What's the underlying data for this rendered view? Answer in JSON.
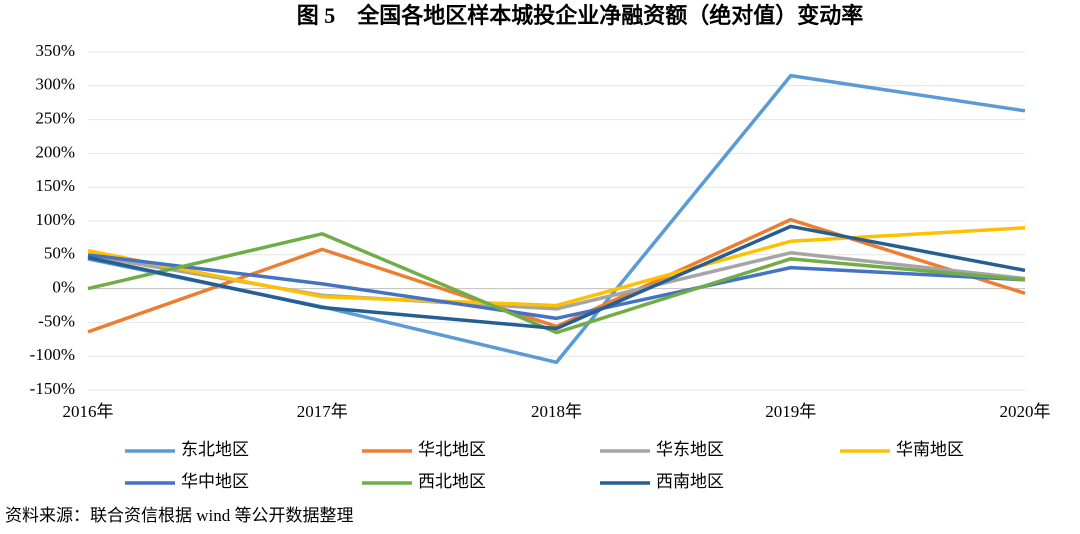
{
  "chart_data": {
    "type": "line",
    "title": "图 5　全国各地区样本城投企业净融资额（绝对值）变动率",
    "categories": [
      "2016年",
      "2017年",
      "2018年",
      "2019年",
      "2020年"
    ],
    "series": [
      {
        "name": "东北地区",
        "color": "#5b9bd5",
        "values": [
          44,
          -27,
          -109,
          315,
          263
        ]
      },
      {
        "name": "华北地区",
        "color": "#ed7d31",
        "values": [
          -64,
          58,
          -56,
          102,
          -7
        ]
      },
      {
        "name": "华东地区",
        "color": "#a5a5a5",
        "values": [
          49,
          -10,
          -30,
          53,
          15
        ]
      },
      {
        "name": "华南地区",
        "color": "#ffc000",
        "values": [
          56,
          -12,
          -25,
          70,
          90
        ]
      },
      {
        "name": "华中地区",
        "color": "#4472c4",
        "values": [
          50,
          7,
          -44,
          31,
          13
        ]
      },
      {
        "name": "西北地区",
        "color": "#70ad47",
        "values": [
          0,
          81,
          -65,
          44,
          13
        ]
      },
      {
        "name": "西南地区",
        "color": "#255e91",
        "values": [
          46,
          -28,
          -59,
          92,
          27
        ]
      }
    ],
    "ylim": [
      -150,
      350
    ],
    "yticks": [
      {
        "value": -150,
        "label": "-150%"
      },
      {
        "value": -100,
        "label": "-100%"
      },
      {
        "value": -50,
        "label": "-50%"
      },
      {
        "value": 0,
        "label": "0%"
      },
      {
        "value": 50,
        "label": "50%"
      },
      {
        "value": 100,
        "label": "100%"
      },
      {
        "value": 150,
        "label": "150%"
      },
      {
        "value": 200,
        "label": "200%"
      },
      {
        "value": 250,
        "label": "250%"
      },
      {
        "value": 300,
        "label": "300%"
      },
      {
        "value": 350,
        "label": "350%"
      }
    ],
    "grid": true,
    "source": "资料来源：联合资信根据 wind 等公开数据整理"
  }
}
